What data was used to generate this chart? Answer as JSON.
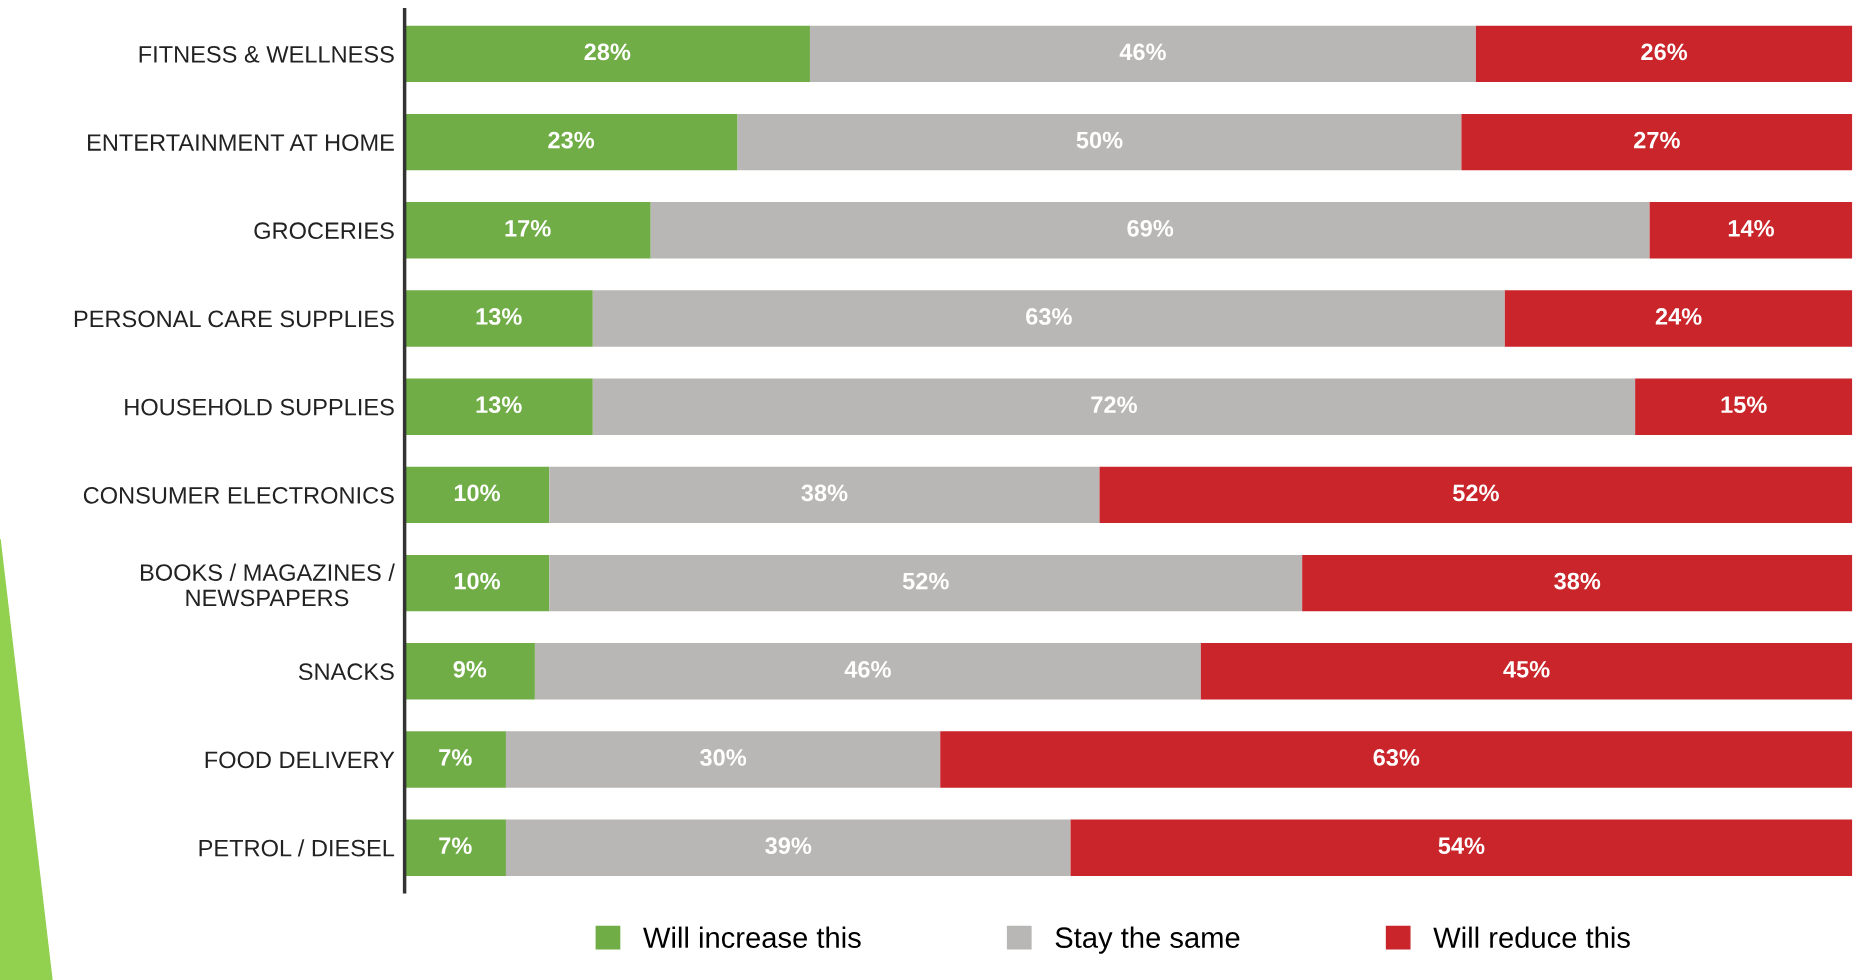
{
  "chart_data": {
    "type": "bar",
    "orientation": "horizontal",
    "stacked": true,
    "legend": "bottom",
    "grid": false,
    "tick_labels": "y",
    "categories": [
      "FITNESS & WELLNESS",
      "ENTERTAINMENT AT HOME",
      "GROCERIES",
      "PERSONAL CARE SUPPLIES",
      "HOUSEHOLD SUPPLIES",
      "CONSUMER ELECTRONICS",
      "BOOKS / MAGAZINES /\nNEWSPAPERS",
      "SNACKS",
      "FOOD DELIVERY",
      "PETROL / DIESEL"
    ],
    "series": [
      {
        "name": "Will increase this",
        "color": "#70ad47",
        "values": [
          28,
          23,
          17,
          13,
          13,
          10,
          10,
          9,
          7,
          7
        ],
        "value_labels": [
          "28%",
          "23%",
          "17%",
          "13%",
          "13%",
          "10%",
          "10%",
          "9%",
          "7%",
          "7%"
        ]
      },
      {
        "name": "Stay the same",
        "color": "#b8b7b5",
        "values": [
          46,
          50,
          69,
          63,
          72,
          38,
          52,
          46,
          30,
          39
        ],
        "value_labels": [
          "46%",
          "50%",
          "69%",
          "63%",
          "72%",
          "38%",
          "52%",
          "46%",
          "30%",
          "39%"
        ]
      },
      {
        "name": "Will reduce this",
        "color": "#c9252a",
        "values": [
          26,
          27,
          14,
          24,
          15,
          52,
          38,
          45,
          63,
          54
        ],
        "value_labels": [
          "26%",
          "27%",
          "14%",
          "24%",
          "15%",
          "52%",
          "38%",
          "45%",
          "63%",
          "54%"
        ]
      }
    ]
  }
}
